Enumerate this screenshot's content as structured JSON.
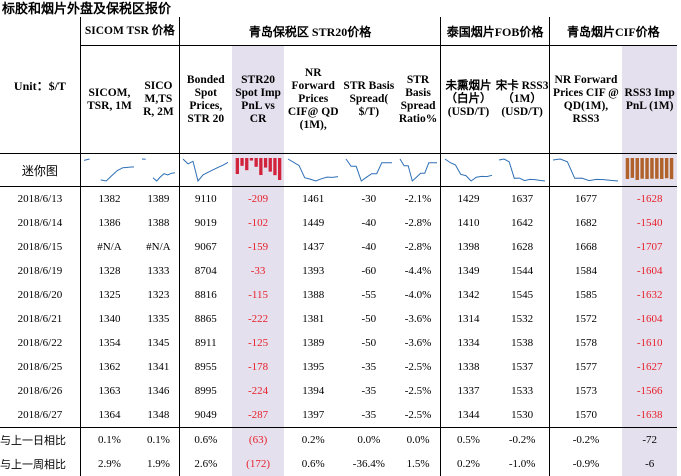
{
  "title": "标胶和烟片外盘及保税区报价",
  "groups": {
    "sicom": "SICOM TSR 价格",
    "qingdao_bonded": "青岛保税区 STR20价格",
    "thai_fob": "泰国烟片FOB价格",
    "qingdao_cif": "青岛烟片CIF价格"
  },
  "unit_label": "Unit：$/T",
  "columns": [
    "SICOM, TSR, 1M",
    "SICO M,TS R, 2M",
    "Bonded Spot Prices, STR 20",
    "STR20 Spot Imp PnL vs CR",
    "NR Forward Prices CIF@ QD (1M),",
    "STR Basis Spread( $/T)",
    "STR Basis Spread Ratio%",
    "未熏烟片（白片）(USD/T)",
    "宋卡 RSS3（1M）(USD/T)",
    "NR Forward Prices CIF @ QD(1M), RSS3",
    "RSS3 Imp PnL (1M)"
  ],
  "mini_label": "迷你图",
  "rows": [
    {
      "date": "2018/6/13",
      "v": [
        "1382",
        "1389",
        "9110",
        "-209",
        "1461",
        "-30",
        "-2.1%",
        "1429",
        "1637",
        "1677",
        "-1628"
      ]
    },
    {
      "date": "2018/6/14",
      "v": [
        "1386",
        "1388",
        "9019",
        "-102",
        "1449",
        "-40",
        "-2.8%",
        "1410",
        "1642",
        "1682",
        "-1540"
      ]
    },
    {
      "date": "2018/6/15",
      "v": [
        "#N/A",
        "#N/A",
        "9067",
        "-159",
        "1437",
        "-40",
        "-2.8%",
        "1398",
        "1628",
        "1668",
        "-1707"
      ]
    },
    {
      "date": "2018/6/19",
      "v": [
        "1328",
        "1333",
        "8704",
        "-33",
        "1393",
        "-60",
        "-4.4%",
        "1349",
        "1544",
        "1584",
        "-1604"
      ]
    },
    {
      "date": "2018/6/20",
      "v": [
        "1325",
        "1323",
        "8816",
        "-115",
        "1388",
        "-55",
        "-4.0%",
        "1342",
        "1545",
        "1585",
        "-1632"
      ]
    },
    {
      "date": "2018/6/21",
      "v": [
        "1340",
        "1335",
        "8865",
        "-222",
        "1381",
        "-50",
        "-3.6%",
        "1314",
        "1532",
        "1572",
        "-1604"
      ]
    },
    {
      "date": "2018/6/22",
      "v": [
        "1354",
        "1345",
        "8911",
        "-125",
        "1389",
        "-50",
        "-3.6%",
        "1334",
        "1538",
        "1578",
        "-1610"
      ]
    },
    {
      "date": "2018/6/25",
      "v": [
        "1362",
        "1341",
        "8955",
        "-178",
        "1395",
        "-35",
        "-2.5%",
        "1338",
        "1537",
        "1577",
        "-1627"
      ]
    },
    {
      "date": "2018/6/26",
      "v": [
        "1363",
        "1346",
        "8995",
        "-224",
        "1394",
        "-35",
        "-2.5%",
        "1337",
        "1533",
        "1573",
        "-1566"
      ]
    },
    {
      "date": "2018/6/27",
      "v": [
        "1364",
        "1348",
        "9049",
        "-287",
        "1397",
        "-35",
        "-2.5%",
        "1344",
        "1530",
        "1570",
        "-1638"
      ]
    }
  ],
  "footer": [
    {
      "label": "与上一日相比",
      "v": [
        "0.1%",
        "0.1%",
        "0.6%",
        "(63)",
        "0.2%",
        "0.0%",
        "0.0%",
        "0.5%",
        "-0.2%",
        "-0.2%",
        "-72"
      ]
    },
    {
      "label": "与上一周相比",
      "v": [
        "2.9%",
        "1.9%",
        "2.6%",
        "(172)",
        "0.6%",
        "-36.4%",
        "1.5%",
        "0.2%",
        "-1.0%",
        "-0.9%",
        "-6"
      ]
    }
  ],
  "colors": {
    "negative": "#e8202a",
    "highlight": "#e4e0ee",
    "sparkline": "#2e6fb5",
    "bar_neg_red": "#d2233c",
    "bar_neg_brown": "#b0622a"
  }
}
